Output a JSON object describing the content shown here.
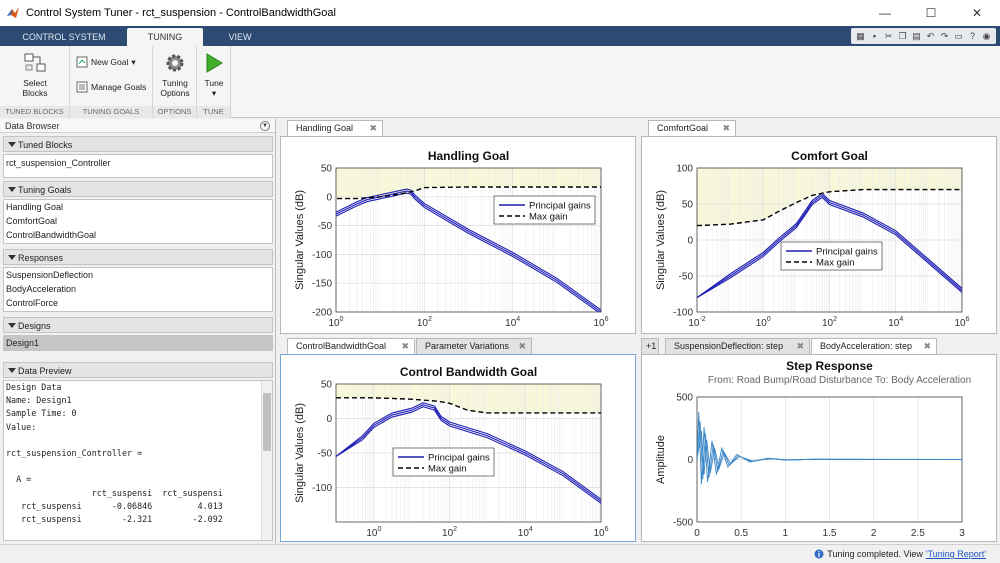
{
  "window": {
    "title": "Control System Tuner - rct_suspension - ControlBandwidthGoal",
    "minimize": "—",
    "maximize": "☐",
    "close": "✕"
  },
  "ribbon_tabs": [
    "CONTROL SYSTEM",
    "TUNING",
    "VIEW"
  ],
  "ribbon": {
    "select_blocks": [
      "Select",
      "Blocks"
    ],
    "new_goal": "New Goal",
    "manage_goals": "Manage Goals",
    "tuning_options": [
      "Tuning",
      "Options"
    ],
    "tune": "Tune",
    "groups": [
      "TUNED BLOCKS",
      "TUNING GOALS",
      "OPTIONS",
      "TUNE"
    ]
  },
  "data_browser": {
    "title": "Data Browser",
    "sections": {
      "tuned_blocks": {
        "title": "Tuned Blocks",
        "items": [
          "rct_suspension_Controller"
        ]
      },
      "tuning_goals": {
        "title": "Tuning Goals",
        "items": [
          "Handling Goal",
          "ComfortGoal",
          "ControlBandwidthGoal"
        ]
      },
      "responses": {
        "title": "Responses",
        "items": [
          "SuspensionDeflection",
          "BodyAcceleration",
          "ControlForce"
        ]
      },
      "designs": {
        "title": "Designs",
        "items": [
          "Design1"
        ]
      },
      "data_preview": {
        "title": "Data Preview",
        "lines": [
          "Design Data",
          "Name: Design1",
          "Sample Time: 0",
          "Value:",
          "",
          "rct_suspension_Controller =",
          "",
          "  A =",
          "                 rct_suspensi  rct_suspensi",
          "   rct_suspensi      -0.06846         4.013",
          "   rct_suspensi        -2.321        -2.092"
        ]
      }
    }
  },
  "docs": {
    "handling": {
      "tabs": [
        "Handling Goal"
      ]
    },
    "comfort": {
      "tabs": [
        "ComfortGoal"
      ]
    },
    "bandwidth": {
      "tabs": [
        "ControlBandwidthGoal",
        "Parameter Variations"
      ]
    },
    "step": {
      "tabs": [
        "SuspensionDeflection: step",
        "BodyAcceleration: step"
      ],
      "count_badge": "+1"
    }
  },
  "chart_data": [
    {
      "type": "line",
      "title": "Handling Goal",
      "xlabel": "",
      "ylabel": "Singular Values (dB)",
      "xscale": "log",
      "xlim": [
        1,
        1000000
      ],
      "ylim": [
        -200,
        50
      ],
      "xticks": [
        1,
        100,
        10000,
        1000000
      ],
      "xtick_labels": [
        [
          "10",
          "0"
        ],
        [
          "10",
          "2"
        ],
        [
          "10",
          "4"
        ],
        [
          "10",
          "6"
        ]
      ],
      "yticks": [
        50,
        0,
        -50,
        -100,
        -150,
        -200
      ],
      "ytick_labels": [
        "50",
        "0",
        "-50",
        "-100",
        "-150",
        "-200"
      ],
      "legend": {
        "position": "upper-right",
        "entries": [
          "Principal gains",
          "Max gain"
        ]
      },
      "shaded_region": "above max gain",
      "series": [
        {
          "name": "Principal gains",
          "style": "solid",
          "color": "#1f1fb4",
          "x": [
            0.2,
            1,
            3,
            5,
            10,
            20,
            30,
            40,
            50,
            60,
            100,
            1000,
            10000,
            100000,
            1000000
          ],
          "y": [
            -60,
            -30,
            -12,
            -5,
            0,
            5,
            8,
            10,
            8,
            0,
            -15,
            -60,
            -100,
            -145,
            -200
          ]
        },
        {
          "name": "Max gain",
          "style": "dashed",
          "color": "#000000",
          "x": [
            0.2,
            3,
            10,
            30,
            60,
            100,
            1000,
            1000000
          ],
          "y": [
            -3,
            -3,
            0,
            5,
            10,
            16,
            17,
            17
          ]
        }
      ]
    },
    {
      "type": "line",
      "title": "Comfort Goal",
      "xlabel": "",
      "ylabel": "Singular Values (dB)",
      "xscale": "log",
      "xlim": [
        0.01,
        1000000
      ],
      "ylim": [
        -100,
        100
      ],
      "xticks": [
        0.01,
        1,
        100,
        10000,
        1000000
      ],
      "xtick_labels": [
        [
          "10",
          "-2"
        ],
        [
          "10",
          "0"
        ],
        [
          "10",
          "2"
        ],
        [
          "10",
          "4"
        ],
        [
          "10",
          "6"
        ]
      ],
      "yticks": [
        100,
        50,
        0,
        -50,
        -100
      ],
      "ytick_labels": [
        "100",
        "50",
        "0",
        "-50",
        "-100"
      ],
      "legend": {
        "position": "center",
        "entries": [
          "Principal gains",
          "Max gain"
        ]
      },
      "shaded_region": "above max gain",
      "series": [
        {
          "name": "Principal gains",
          "style": "solid",
          "color": "#1f1fb4",
          "x": [
            0.01,
            0.1,
            1,
            3,
            10,
            20,
            30,
            60,
            100,
            1000,
            10000,
            100000,
            1000000
          ],
          "y": [
            -80,
            -50,
            -20,
            0,
            20,
            40,
            52,
            62,
            52,
            35,
            10,
            -30,
            -70
          ]
        },
        {
          "name": "Max gain",
          "style": "dashed",
          "color": "#000000",
          "x": [
            0.01,
            0.1,
            1,
            3,
            10,
            30,
            100,
            1000,
            10000,
            1000000
          ],
          "y": [
            20,
            22,
            28,
            40,
            52,
            62,
            67,
            70,
            70,
            70
          ]
        }
      ]
    },
    {
      "type": "line",
      "title": "Control Bandwidth Goal",
      "xlabel": "",
      "ylabel": "Singular Values (dB)",
      "xscale": "log",
      "xlim": [
        0.1,
        1000000
      ],
      "ylim": [
        -150,
        50
      ],
      "xticks": [
        1,
        100,
        10000,
        1000000
      ],
      "xtick_labels": [
        [
          "10",
          "0"
        ],
        [
          "10",
          "2"
        ],
        [
          "10",
          "4"
        ],
        [
          "10",
          "6"
        ]
      ],
      "yticks": [
        50,
        0,
        -50,
        -100
      ],
      "ytick_labels": [
        "50",
        "0",
        "-50",
        "-100"
      ],
      "legend": {
        "position": "center",
        "entries": [
          "Principal gains",
          "Max gain"
        ]
      },
      "shaded_region": "above max gain",
      "series": [
        {
          "name": "Principal gains",
          "style": "solid",
          "color": "#1f1fb4",
          "x": [
            0.1,
            0.5,
            1,
            3,
            10,
            20,
            40,
            60,
            100,
            1000,
            10000,
            100000,
            1000000
          ],
          "y": [
            -55,
            -28,
            -10,
            5,
            12,
            20,
            15,
            0,
            -8,
            -25,
            -50,
            -80,
            -120
          ]
        },
        {
          "name": "Max gain",
          "style": "dashed",
          "color": "#000000",
          "x": [
            0.1,
            1,
            10,
            50,
            100,
            300,
            1000,
            10000,
            1000000
          ],
          "y": [
            30,
            30,
            28,
            25,
            22,
            12,
            8,
            8,
            8
          ]
        }
      ]
    },
    {
      "type": "line",
      "title": "Step Response",
      "subtitle": "From: Road Bump/Road Disturbance  To: Body Acceleration",
      "xlabel": "",
      "ylabel": "Amplitude",
      "xlim": [
        0,
        3
      ],
      "ylim": [
        -500,
        500
      ],
      "xticks": [
        0,
        0.5,
        1,
        1.5,
        2,
        2.5,
        3
      ],
      "xtick_labels": [
        "0",
        "0.5",
        "1",
        "1.5",
        "2",
        "2.5",
        "3"
      ],
      "yticks": [
        500,
        0,
        -500
      ],
      "ytick_labels": [
        "500",
        "0",
        "-500"
      ],
      "series": [
        {
          "style": "solid",
          "color": "#3a86c8",
          "x": [
            0,
            0.02,
            0.05,
            0.08,
            0.12,
            0.17,
            0.22,
            0.28,
            0.35,
            0.45,
            0.6,
            0.8,
            1.0,
            1.3,
            3
          ],
          "y": [
            0,
            380,
            -200,
            260,
            -180,
            150,
            -120,
            90,
            -60,
            40,
            -20,
            10,
            -5,
            2,
            0
          ]
        }
      ]
    }
  ],
  "status": {
    "message": "Tuning completed. View ",
    "link": "'Tuning Report'"
  },
  "colors": {
    "ribbon_tab_bg": "#2c4a72",
    "trace": "#1f1fb4",
    "shade": "#f7f7d9",
    "step_trace": "#3a86c8"
  }
}
